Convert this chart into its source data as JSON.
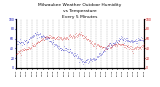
{
  "title": "Milwaukee Weather Outdoor Humidity vs Temperature Every 5 Minutes",
  "title_fontsize": 3.5,
  "background_color": "#ffffff",
  "grid_color": "#aaaaaa",
  "blue_color": "#0000bb",
  "red_color": "#cc0000",
  "xlim": [
    0,
    287
  ],
  "ylim_left": [
    0,
    100
  ],
  "ylim_right": [
    0,
    100
  ],
  "n_points": 288,
  "seed": 12
}
